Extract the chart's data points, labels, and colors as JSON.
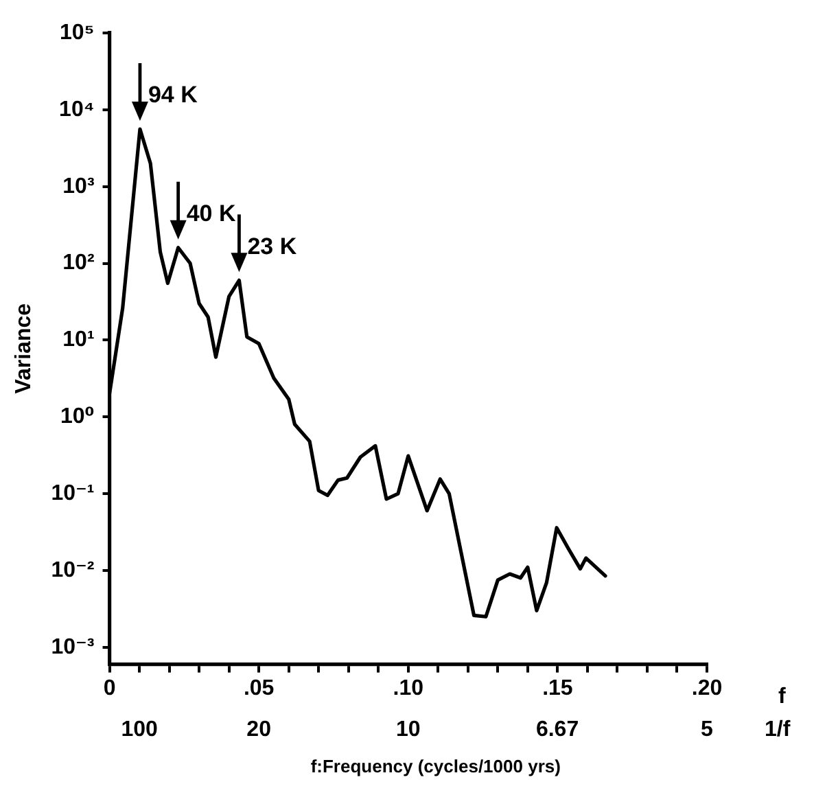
{
  "chart_data": {
    "type": "line",
    "xlabel": "f",
    "x2label": "1/f",
    "ylabel": "Variance",
    "log": "y",
    "annotations": [
      "f:Frequency (cycles/1000 yrs)",
      {
        "text": "94 K",
        "x": 0.0102,
        "y": 5600
      },
      {
        "text": "40 K",
        "x": 0.023,
        "y": 160
      },
      {
        "text": "23 K",
        "x": 0.0434,
        "y": 60
      },
      "100",
      "20",
      "10",
      "6.67",
      "5"
    ],
    "series": [
      {
        "color": "#000000",
        "x": [
          0,
          0.0044,
          0.0102,
          0.0137,
          0.017,
          0.0195,
          0.023,
          0.027,
          0.03,
          0.033,
          0.0356,
          0.04,
          0.0434,
          0.046,
          0.05,
          0.055,
          0.06,
          0.062,
          0.067,
          0.07,
          0.073,
          0.0765,
          0.0795,
          0.084,
          0.089,
          0.0927,
          0.0966,
          0.1,
          0.1063,
          0.1107,
          0.1137,
          0.122,
          0.126,
          0.13,
          0.134,
          0.1376,
          0.14,
          0.143,
          0.1463,
          0.1497,
          0.1537,
          0.1576,
          0.1595,
          0.166
        ],
        "values": [
          2,
          26,
          5600,
          2000,
          140,
          55,
          160,
          100,
          30,
          20,
          6,
          37,
          60,
          11,
          9,
          3.2,
          1.7,
          0.8,
          0.48,
          0.11,
          0.095,
          0.15,
          0.16,
          0.3,
          0.42,
          0.085,
          0.1,
          0.31,
          0.06,
          0.155,
          0.1,
          0.0026,
          0.0025,
          0.0075,
          0.009,
          0.008,
          0.011,
          0.003,
          0.0069,
          0.036,
          0.019,
          0.0105,
          0.0145,
          0.0085
        ]
      }
    ],
    "xlim": [
      0,
      0.2
    ],
    "xticks": [
      {
        "value": 0,
        "label": "0"
      },
      {
        "value": 0.01,
        "label": null
      },
      {
        "value": 0.02,
        "label": null
      },
      {
        "value": 0.03,
        "label": null
      },
      {
        "value": 0.04,
        "label": null
      },
      {
        "value": 0.05,
        "label": ".05"
      },
      {
        "value": 0.06,
        "label": null
      },
      {
        "value": 0.07,
        "label": null
      },
      {
        "value": 0.08,
        "label": null
      },
      {
        "value": 0.09,
        "label": null
      },
      {
        "value": 0.1,
        "label": ".10"
      },
      {
        "value": 0.11,
        "label": null
      },
      {
        "value": 0.12,
        "label": null
      },
      {
        "value": 0.13,
        "label": null
      },
      {
        "value": 0.14,
        "label": null
      },
      {
        "value": 0.15,
        "label": ".15"
      },
      {
        "value": 0.16,
        "label": null
      },
      {
        "value": 0.17,
        "label": null
      },
      {
        "value": 0.18,
        "label": null
      },
      {
        "value": 0.19,
        "label": null
      },
      {
        "value": 0.2,
        "label": ".20"
      }
    ],
    "ylim": [
      0.0006,
      100000
    ],
    "yticks": [
      {
        "value": 0.001,
        "label": "10⁻³"
      },
      {
        "value": 0.01,
        "label": "10⁻²"
      },
      {
        "value": 0.1,
        "label": "10⁻¹"
      },
      {
        "value": 1,
        "label": "10⁰"
      },
      {
        "value": 10,
        "label": "10¹"
      },
      {
        "value": 100,
        "label": "10²"
      },
      {
        "value": 1000,
        "label": "10³"
      },
      {
        "value": 10000,
        "label": "10⁴"
      },
      {
        "value": 100000,
        "label": "10⁵"
      }
    ]
  }
}
